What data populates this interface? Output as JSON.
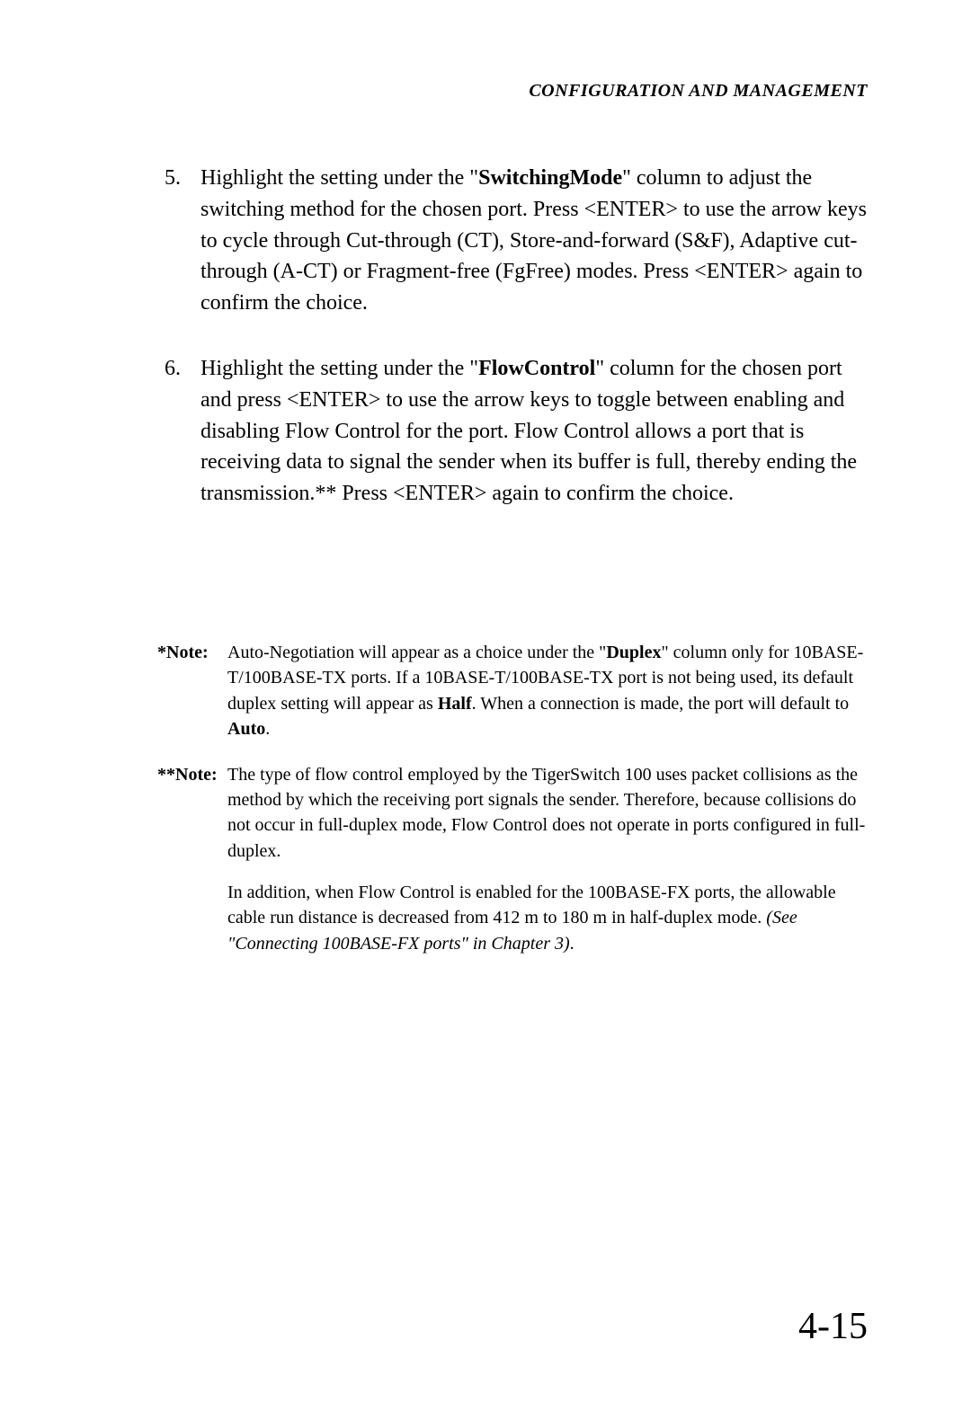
{
  "header": "CONFIGURATION AND MANAGEMENT",
  "item5": {
    "num": "5.",
    "pre": "Highlight the setting under the \"",
    "boldCol": "SwitchingMode",
    "post": "\" column to adjust the switching method for the chosen port.  Press <ENTER> to use the arrow keys to cycle through Cut-through (CT), Store-and-forward (S&F), Adaptive cut-through (A-CT) or Fragment-free (FgFree) modes.  Press <ENTER> again to confirm the choice."
  },
  "item6": {
    "num": "6.",
    "pre": "Highlight the setting under the \"",
    "boldCol": "FlowControl",
    "post": "\" column for the chosen port and press <ENTER> to use the arrow keys to toggle between enabling and disabling Flow Control for the port.  Flow Control allows a port that is receiving data to signal the sender when its buffer is full, thereby ending the transmission.**  Press <ENTER> again to confirm the choice."
  },
  "note1": {
    "label": "*Note:",
    "pre": "Auto-Negotiation will appear as a choice under the \"",
    "b1": "Duplex",
    "mid1": "\" column only for 10BASE-T/100BASE-TX ports.  If a 10BASE-T/100BASE-TX port is not being used, its default duplex setting will appear as ",
    "b2": "Half",
    "mid2": ".  When a connection is made, the port will default to ",
    "b3": "Auto",
    "end": "."
  },
  "note2": {
    "label": "**Note:",
    "p1": "The type of flow control employed by the TigerSwitch 100 uses packet collisions as the method by which the receiving port signals the sender. Therefore, because collisions do not occur in full-duplex mode, Flow Control does not operate in ports configured in full-duplex.",
    "p2a": "In addition, when Flow Control is enabled for the 100BASE-FX ports, the allowable cable run distance is decreased from 412 m to 180 m in half-duplex mode.  ",
    "p2i": "(See \"Connecting 100BASE-FX ports\" in Chapter 3)",
    "p2b": "."
  },
  "pageNumber": "4-15"
}
